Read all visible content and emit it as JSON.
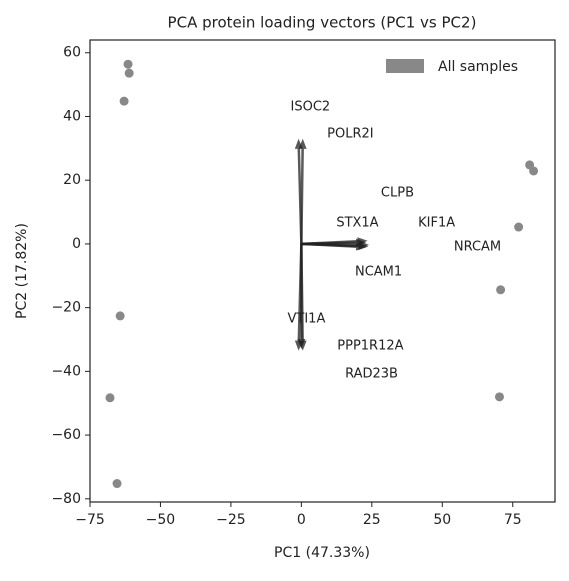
{
  "chart_data": {
    "type": "scatter",
    "title": "PCA protein loading vectors (PC1 vs PC2)",
    "xlabel": "PC1 (47.33%)",
    "ylabel": "PC2 (17.82%)",
    "xlim": [
      -75,
      90
    ],
    "ylim": [
      -81,
      64
    ],
    "xticks": [
      {
        "value": -75,
        "label": "−75"
      },
      {
        "value": -50,
        "label": "−50"
      },
      {
        "value": -25,
        "label": "−25"
      },
      0,
      25,
      50,
      75
    ],
    "yticks": [
      {
        "value": -80,
        "label": "−80"
      },
      {
        "value": -60,
        "label": "−60"
      },
      {
        "value": -40,
        "label": "−40"
      },
      {
        "value": -20,
        "label": "−20"
      },
      0,
      20,
      40,
      60
    ],
    "legend": "upper right",
    "series": [
      {
        "name": "All samples",
        "color": "#888888",
        "x": [
          -61.5,
          -61.1,
          -62.9,
          -64.3,
          -67.9,
          -65.4,
          81.0,
          82.4,
          77.1,
          70.7,
          70.3
        ],
        "y": [
          56.4,
          53.6,
          44.8,
          -22.6,
          -48.3,
          -75.2,
          24.8,
          22.9,
          5.3,
          -14.4,
          -48.0
        ]
      }
    ],
    "arrow_color": "#222222",
    "loadings": [
      {
        "label": "ISOC2",
        "dx": -1,
        "dy": 33,
        "tx": 3.2,
        "ty": 43
      },
      {
        "label": "POLR2I",
        "dx": 0.5,
        "dy": 33,
        "tx": 17.4,
        "ty": 34.5
      },
      {
        "label": "CLPB",
        "dx": 23.5,
        "dy": 1,
        "tx": 34.1,
        "ty": 16
      },
      {
        "label": "STX1A",
        "dx": 23,
        "dy": 0.5,
        "tx": 19.9,
        "ty": 6.6
      },
      {
        "label": "KIF1A",
        "dx": 24,
        "dy": -0.3,
        "tx": 48,
        "ty": 6.6
      },
      {
        "label": "NRCAM",
        "dx": 23.8,
        "dy": -0.8,
        "tx": 62.5,
        "ty": -0.9
      },
      {
        "label": "NCAM1",
        "dx": 23,
        "dy": -1,
        "tx": 27.4,
        "ty": -8.8
      },
      {
        "label": "VTI1A",
        "dx": -1,
        "dy": -33.5,
        "tx": 1.8,
        "ty": -23.5
      },
      {
        "label": "PPP1R12A",
        "dx": 0.5,
        "dy": -33.5,
        "tx": 24.5,
        "ty": -32
      },
      {
        "label": "RAD23B",
        "dx": 0,
        "dy": -33,
        "tx": 24.9,
        "ty": -40.8
      }
    ]
  }
}
